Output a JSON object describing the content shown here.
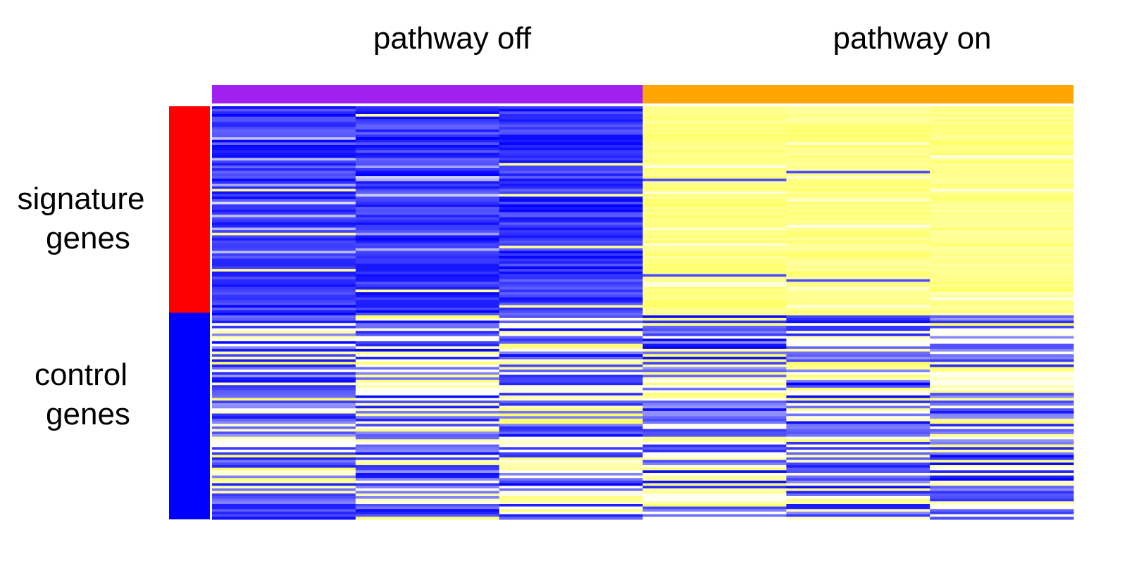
{
  "chart_data": {
    "type": "heatmap",
    "title": "",
    "column_groups": [
      {
        "label": "pathway off",
        "color": "#a020f0",
        "n_samples": 3,
        "sample_index_range": [
          1,
          3
        ]
      },
      {
        "label": "pathway on",
        "color": "#ffa500",
        "n_samples": 3,
        "sample_index_range": [
          4,
          6
        ]
      }
    ],
    "row_groups": [
      {
        "label_lines": [
          "signature",
          "genes"
        ],
        "color": "#ff0000",
        "n_genes": 80
      },
      {
        "label_lines": [
          "control",
          "genes"
        ],
        "color": "#0000ff",
        "n_genes": 80
      }
    ],
    "color_scale": {
      "low": "#0000ff",
      "mid": "#ffffff",
      "high": "#ffff66"
    },
    "expression_pattern": {
      "signature_genes": {
        "pathway off": "low",
        "pathway on": "high"
      },
      "control_genes": {
        "pathway off": "mixed",
        "pathway on": "mixed"
      }
    },
    "legend": "none"
  }
}
